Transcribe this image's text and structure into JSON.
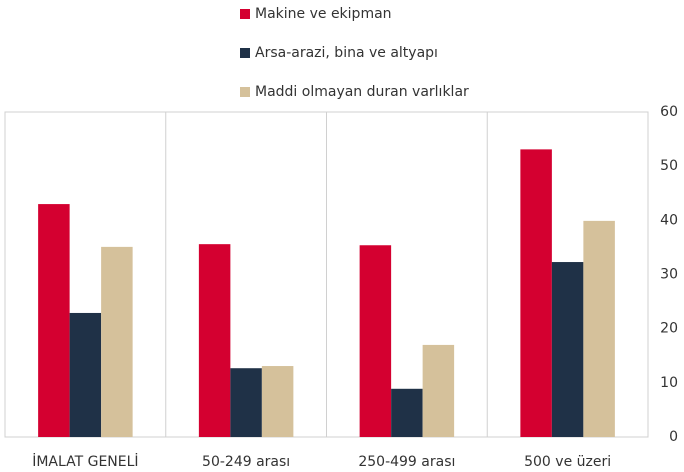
{
  "chart_data": {
    "type": "bar",
    "categories": [
      "İMALAT GENELİ",
      "50-249 arası",
      "250-499 arası",
      "500 ve üzeri"
    ],
    "series": [
      {
        "name": "Makine ve ekipman",
        "color": "#d40030",
        "values": [
          43,
          35.6,
          35.4,
          53.1
        ]
      },
      {
        "name": "Arsa-arazi, bina ve altyapı",
        "color": "#1f3147",
        "values": [
          22.9,
          12.7,
          8.9,
          32.3
        ]
      },
      {
        "name": "Maddi olmayan duran varlıklar",
        "color": "#d5c19b",
        "values": [
          35.1,
          13.1,
          17,
          39.9
        ]
      }
    ],
    "ylim": [
      0,
      60
    ],
    "yticks": [
      0,
      10,
      20,
      30,
      40,
      50,
      60
    ],
    "y_axis_side": "right",
    "grid": false,
    "legend": "top"
  }
}
